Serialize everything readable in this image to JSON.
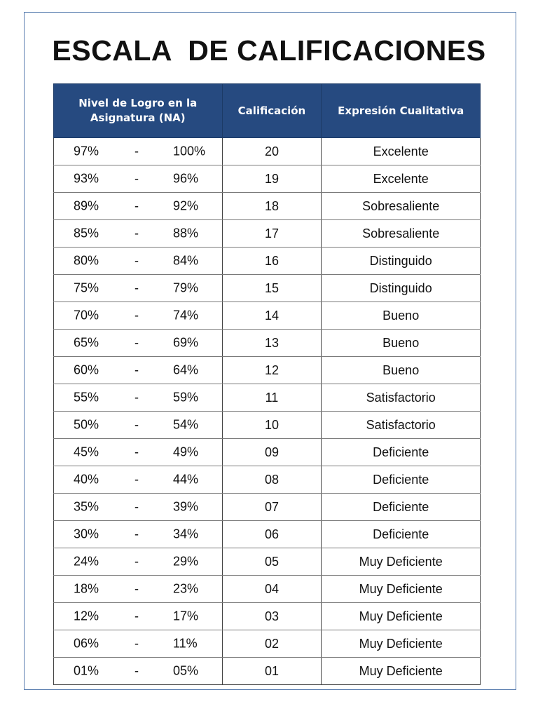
{
  "title": "ESCALA  DE CALIFICACIONES",
  "table": {
    "headers": [
      "Nivel de Logro en la Asignatura (NA)",
      "Calificación",
      "Expresión Cualitativa"
    ],
    "rows": [
      {
        "from": "97%",
        "sep": "-",
        "to": "100%",
        "grade": "20",
        "label": "Excelente"
      },
      {
        "from": "93%",
        "sep": "-",
        "to": "96%",
        "grade": "19",
        "label": "Excelente"
      },
      {
        "from": "89%",
        "sep": "-",
        "to": "92%",
        "grade": "18",
        "label": "Sobresaliente"
      },
      {
        "from": "85%",
        "sep": "-",
        "to": "88%",
        "grade": "17",
        "label": "Sobresaliente"
      },
      {
        "from": "80%",
        "sep": "-",
        "to": "84%",
        "grade": "16",
        "label": "Distinguido"
      },
      {
        "from": "75%",
        "sep": "-",
        "to": "79%",
        "grade": "15",
        "label": "Distinguido"
      },
      {
        "from": "70%",
        "sep": "-",
        "to": "74%",
        "grade": "14",
        "label": "Bueno"
      },
      {
        "from": "65%",
        "sep": "-",
        "to": "69%",
        "grade": "13",
        "label": "Bueno"
      },
      {
        "from": "60%",
        "sep": "-",
        "to": "64%",
        "grade": "12",
        "label": "Bueno"
      },
      {
        "from": "55%",
        "sep": "-",
        "to": "59%",
        "grade": "11",
        "label": "Satisfactorio"
      },
      {
        "from": "50%",
        "sep": "-",
        "to": "54%",
        "grade": "10",
        "label": "Satisfactorio"
      },
      {
        "from": "45%",
        "sep": "-",
        "to": "49%",
        "grade": "09",
        "label": "Deficiente"
      },
      {
        "from": "40%",
        "sep": "-",
        "to": "44%",
        "grade": "08",
        "label": "Deficiente"
      },
      {
        "from": "35%",
        "sep": "-",
        "to": "39%",
        "grade": "07",
        "label": "Deficiente"
      },
      {
        "from": "30%",
        "sep": "-",
        "to": "34%",
        "grade": "06",
        "label": "Deficiente"
      },
      {
        "from": "24%",
        "sep": "-",
        "to": "29%",
        "grade": "05",
        "label": "Muy Deficiente"
      },
      {
        "from": "18%",
        "sep": "-",
        "to": "23%",
        "grade": "04",
        "label": "Muy Deficiente"
      },
      {
        "from": "12%",
        "sep": "-",
        "to": "17%",
        "grade": "03",
        "label": "Muy Deficiente"
      },
      {
        "from": "06%",
        "sep": "-",
        "to": "11%",
        "grade": "02",
        "label": "Muy Deficiente"
      },
      {
        "from": "01%",
        "sep": "-",
        "to": "05%",
        "grade": "01",
        "label": "Muy Deficiente"
      }
    ]
  },
  "colors": {
    "header_bg": "#264a80",
    "header_text": "#ffffff",
    "frame_border": "#5b7fb0"
  }
}
